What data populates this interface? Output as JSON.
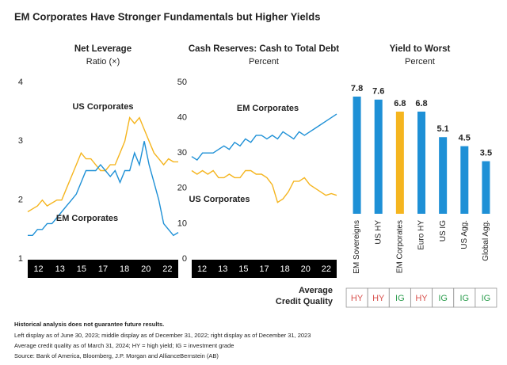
{
  "title": "EM Corporates Have Stronger Fundamentals but Higher Yields",
  "chart_data": [
    {
      "type": "line",
      "title": "Net Leverage",
      "subtitle": "Ratio (×)",
      "xtick_labels": [
        "12",
        "13",
        "15",
        "17",
        "18",
        "20",
        "22"
      ],
      "ylim": [
        1,
        4
      ],
      "yticks": [
        1,
        2,
        3,
        4
      ],
      "series": [
        {
          "name": "US Corporates",
          "color": "#f5b51f",
          "values": [
            1.8,
            1.85,
            1.9,
            2.0,
            1.9,
            1.95,
            2.0,
            2.0,
            2.2,
            2.4,
            2.6,
            2.8,
            2.7,
            2.7,
            2.6,
            2.5,
            2.5,
            2.6,
            2.6,
            2.8,
            3.0,
            3.4,
            3.3,
            3.4,
            3.2,
            3.0,
            2.8,
            2.7,
            2.6,
            2.7,
            2.65,
            2.65
          ]
        },
        {
          "name": "EM Corporates",
          "color": "#1e90d6",
          "values": [
            1.4,
            1.4,
            1.5,
            1.5,
            1.6,
            1.6,
            1.7,
            1.8,
            1.9,
            2.0,
            2.1,
            2.3,
            2.5,
            2.5,
            2.5,
            2.6,
            2.5,
            2.4,
            2.5,
            2.3,
            2.5,
            2.5,
            2.8,
            2.6,
            3.0,
            2.6,
            2.3,
            2.0,
            1.6,
            1.5,
            1.4,
            1.45
          ]
        }
      ]
    },
    {
      "type": "line",
      "title": "Cash Reserves: Cash to Total Debt",
      "subtitle": "Percent",
      "xtick_labels": [
        "12",
        "13",
        "15",
        "17",
        "18",
        "20",
        "22"
      ],
      "ylim": [
        0,
        50
      ],
      "yticks": [
        0,
        10,
        20,
        30,
        40,
        50
      ],
      "series": [
        {
          "name": "EM Corporates",
          "color": "#1e90d6",
          "values": [
            29,
            28,
            30,
            30,
            30,
            31,
            32,
            31,
            33,
            32,
            34,
            33,
            35,
            35,
            34,
            35,
            34,
            36,
            35,
            34,
            36,
            35,
            36,
            37,
            38,
            39,
            40,
            41
          ]
        },
        {
          "name": "US Corporates",
          "color": "#f5b51f",
          "values": [
            25,
            24,
            25,
            24,
            25,
            23,
            23,
            24,
            23,
            23,
            25,
            25,
            24,
            24,
            23,
            21,
            16,
            17,
            19,
            22,
            22,
            23,
            21,
            20,
            19,
            18,
            18.5,
            18
          ]
        }
      ]
    },
    {
      "type": "bar",
      "title": "Yield to Worst",
      "subtitle": "Percent",
      "categories": [
        "EM Sovereigns",
        "US HY",
        "EM Corporates",
        "Euro HY",
        "US IG",
        "US Agg.",
        "Global Agg."
      ],
      "values": [
        7.8,
        7.6,
        6.8,
        6.8,
        5.1,
        4.5,
        3.5
      ],
      "colors": [
        "#1e90d6",
        "#1e90d6",
        "#f5b51f",
        "#1e90d6",
        "#1e90d6",
        "#1e90d6",
        "#1e90d6"
      ],
      "credit_quality_label": "Average Credit Quality",
      "credit_quality": [
        "HY",
        "HY",
        "IG",
        "HY",
        "IG",
        "IG",
        "IG"
      ],
      "credit_quality_colors": {
        "HY": "#d9534f",
        "IG": "#2e9e4f"
      }
    }
  ],
  "notes": [
    "Historical analysis does not guarantee future results.",
    "Left display as of June 30, 2023; middle display as of December 31, 2022; right display as of December 31, 2023",
    "Average credit quality as of March 31, 2024; HY = high yield; IG = investment grade",
    "Source: Bank of America, Bloomberg, J.P. Morgan and AllianceBernstein (AB)"
  ]
}
